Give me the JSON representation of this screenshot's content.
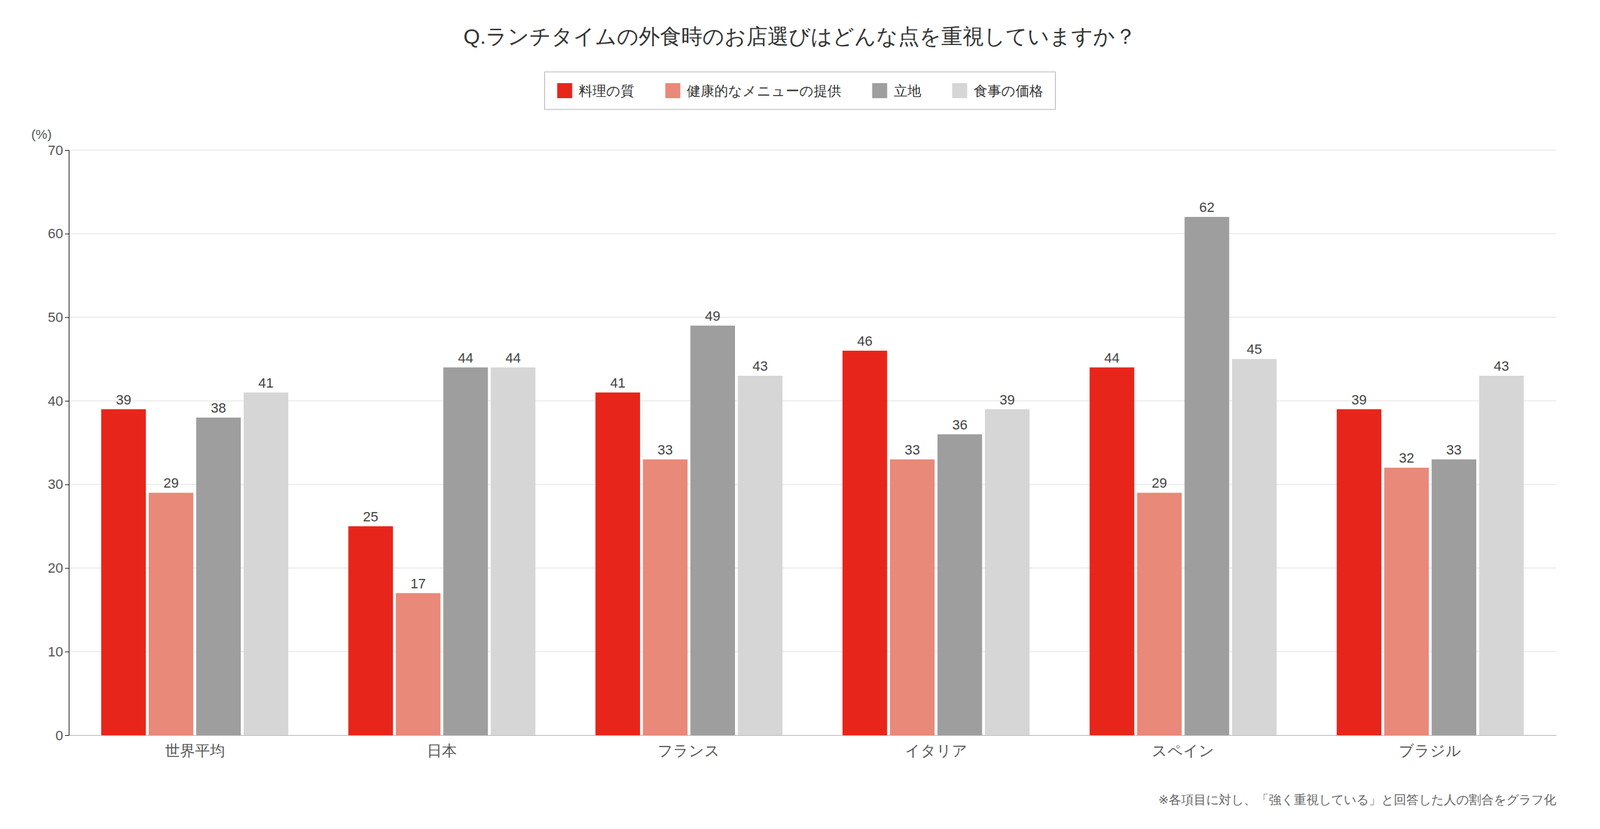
{
  "chart_data": {
    "type": "bar",
    "title": "Q.ランチタイムの外食時のお店選びはどんな点を重視していますか？",
    "footnote": "※各項目に対し、「強く重視している」と回答した人の割合をグラフ化",
    "ylabel": "(%)",
    "categories": [
      "世界平均",
      "日本",
      "フランス",
      "イタリア",
      "スペイン",
      "ブラジル"
    ],
    "series": [
      {
        "name": "料理の質",
        "color": "#e8251a",
        "values": [
          39,
          25,
          41,
          46,
          44,
          39
        ]
      },
      {
        "name": "健康的なメニューの提供",
        "color": "#e8897a",
        "values": [
          29,
          17,
          33,
          33,
          29,
          32
        ]
      },
      {
        "name": "立地",
        "color": "#9e9e9e",
        "values": [
          38,
          44,
          49,
          36,
          62,
          33
        ]
      },
      {
        "name": "食事の価格",
        "color": "#d6d6d6",
        "values": [
          41,
          44,
          43,
          39,
          45,
          43
        ]
      }
    ],
    "ylim": [
      0,
      70
    ],
    "yticks": [
      0,
      10,
      20,
      30,
      40,
      50,
      60,
      70
    ],
    "grid": true,
    "legend": "top",
    "data_labels": true
  }
}
